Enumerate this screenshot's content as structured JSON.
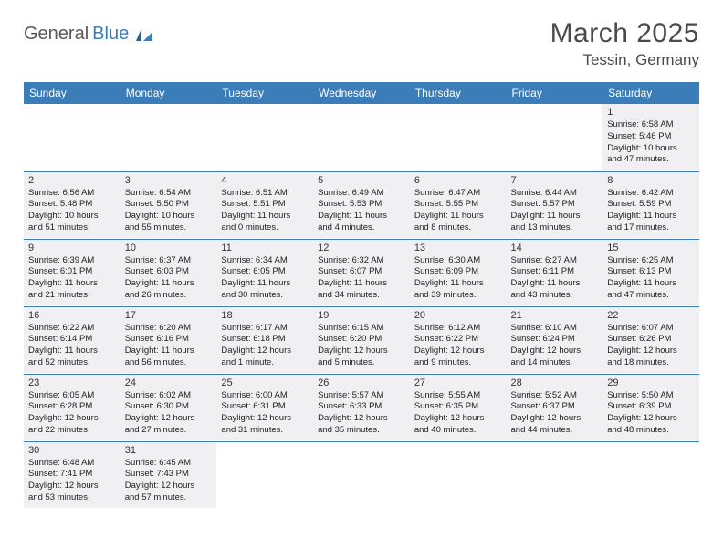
{
  "logo": {
    "text1": "General",
    "text2": "Blue"
  },
  "title": "March 2025",
  "location": "Tessin, Germany",
  "colors": {
    "header_bg": "#3b7db8",
    "header_text": "#ffffff",
    "cell_bg": "#f0f0f2",
    "border": "#3b7db8",
    "text": "#222222"
  },
  "weekdays": [
    "Sunday",
    "Monday",
    "Tuesday",
    "Wednesday",
    "Thursday",
    "Friday",
    "Saturday"
  ],
  "weeks": [
    [
      null,
      null,
      null,
      null,
      null,
      null,
      {
        "day": "1",
        "sunrise": "Sunrise: 6:58 AM",
        "sunset": "Sunset: 5:46 PM",
        "daylight1": "Daylight: 10 hours",
        "daylight2": "and 47 minutes."
      }
    ],
    [
      {
        "day": "2",
        "sunrise": "Sunrise: 6:56 AM",
        "sunset": "Sunset: 5:48 PM",
        "daylight1": "Daylight: 10 hours",
        "daylight2": "and 51 minutes."
      },
      {
        "day": "3",
        "sunrise": "Sunrise: 6:54 AM",
        "sunset": "Sunset: 5:50 PM",
        "daylight1": "Daylight: 10 hours",
        "daylight2": "and 55 minutes."
      },
      {
        "day": "4",
        "sunrise": "Sunrise: 6:51 AM",
        "sunset": "Sunset: 5:51 PM",
        "daylight1": "Daylight: 11 hours",
        "daylight2": "and 0 minutes."
      },
      {
        "day": "5",
        "sunrise": "Sunrise: 6:49 AM",
        "sunset": "Sunset: 5:53 PM",
        "daylight1": "Daylight: 11 hours",
        "daylight2": "and 4 minutes."
      },
      {
        "day": "6",
        "sunrise": "Sunrise: 6:47 AM",
        "sunset": "Sunset: 5:55 PM",
        "daylight1": "Daylight: 11 hours",
        "daylight2": "and 8 minutes."
      },
      {
        "day": "7",
        "sunrise": "Sunrise: 6:44 AM",
        "sunset": "Sunset: 5:57 PM",
        "daylight1": "Daylight: 11 hours",
        "daylight2": "and 13 minutes."
      },
      {
        "day": "8",
        "sunrise": "Sunrise: 6:42 AM",
        "sunset": "Sunset: 5:59 PM",
        "daylight1": "Daylight: 11 hours",
        "daylight2": "and 17 minutes."
      }
    ],
    [
      {
        "day": "9",
        "sunrise": "Sunrise: 6:39 AM",
        "sunset": "Sunset: 6:01 PM",
        "daylight1": "Daylight: 11 hours",
        "daylight2": "and 21 minutes."
      },
      {
        "day": "10",
        "sunrise": "Sunrise: 6:37 AM",
        "sunset": "Sunset: 6:03 PM",
        "daylight1": "Daylight: 11 hours",
        "daylight2": "and 26 minutes."
      },
      {
        "day": "11",
        "sunrise": "Sunrise: 6:34 AM",
        "sunset": "Sunset: 6:05 PM",
        "daylight1": "Daylight: 11 hours",
        "daylight2": "and 30 minutes."
      },
      {
        "day": "12",
        "sunrise": "Sunrise: 6:32 AM",
        "sunset": "Sunset: 6:07 PM",
        "daylight1": "Daylight: 11 hours",
        "daylight2": "and 34 minutes."
      },
      {
        "day": "13",
        "sunrise": "Sunrise: 6:30 AM",
        "sunset": "Sunset: 6:09 PM",
        "daylight1": "Daylight: 11 hours",
        "daylight2": "and 39 minutes."
      },
      {
        "day": "14",
        "sunrise": "Sunrise: 6:27 AM",
        "sunset": "Sunset: 6:11 PM",
        "daylight1": "Daylight: 11 hours",
        "daylight2": "and 43 minutes."
      },
      {
        "day": "15",
        "sunrise": "Sunrise: 6:25 AM",
        "sunset": "Sunset: 6:13 PM",
        "daylight1": "Daylight: 11 hours",
        "daylight2": "and 47 minutes."
      }
    ],
    [
      {
        "day": "16",
        "sunrise": "Sunrise: 6:22 AM",
        "sunset": "Sunset: 6:14 PM",
        "daylight1": "Daylight: 11 hours",
        "daylight2": "and 52 minutes."
      },
      {
        "day": "17",
        "sunrise": "Sunrise: 6:20 AM",
        "sunset": "Sunset: 6:16 PM",
        "daylight1": "Daylight: 11 hours",
        "daylight2": "and 56 minutes."
      },
      {
        "day": "18",
        "sunrise": "Sunrise: 6:17 AM",
        "sunset": "Sunset: 6:18 PM",
        "daylight1": "Daylight: 12 hours",
        "daylight2": "and 1 minute."
      },
      {
        "day": "19",
        "sunrise": "Sunrise: 6:15 AM",
        "sunset": "Sunset: 6:20 PM",
        "daylight1": "Daylight: 12 hours",
        "daylight2": "and 5 minutes."
      },
      {
        "day": "20",
        "sunrise": "Sunrise: 6:12 AM",
        "sunset": "Sunset: 6:22 PM",
        "daylight1": "Daylight: 12 hours",
        "daylight2": "and 9 minutes."
      },
      {
        "day": "21",
        "sunrise": "Sunrise: 6:10 AM",
        "sunset": "Sunset: 6:24 PM",
        "daylight1": "Daylight: 12 hours",
        "daylight2": "and 14 minutes."
      },
      {
        "day": "22",
        "sunrise": "Sunrise: 6:07 AM",
        "sunset": "Sunset: 6:26 PM",
        "daylight1": "Daylight: 12 hours",
        "daylight2": "and 18 minutes."
      }
    ],
    [
      {
        "day": "23",
        "sunrise": "Sunrise: 6:05 AM",
        "sunset": "Sunset: 6:28 PM",
        "daylight1": "Daylight: 12 hours",
        "daylight2": "and 22 minutes."
      },
      {
        "day": "24",
        "sunrise": "Sunrise: 6:02 AM",
        "sunset": "Sunset: 6:30 PM",
        "daylight1": "Daylight: 12 hours",
        "daylight2": "and 27 minutes."
      },
      {
        "day": "25",
        "sunrise": "Sunrise: 6:00 AM",
        "sunset": "Sunset: 6:31 PM",
        "daylight1": "Daylight: 12 hours",
        "daylight2": "and 31 minutes."
      },
      {
        "day": "26",
        "sunrise": "Sunrise: 5:57 AM",
        "sunset": "Sunset: 6:33 PM",
        "daylight1": "Daylight: 12 hours",
        "daylight2": "and 35 minutes."
      },
      {
        "day": "27",
        "sunrise": "Sunrise: 5:55 AM",
        "sunset": "Sunset: 6:35 PM",
        "daylight1": "Daylight: 12 hours",
        "daylight2": "and 40 minutes."
      },
      {
        "day": "28",
        "sunrise": "Sunrise: 5:52 AM",
        "sunset": "Sunset: 6:37 PM",
        "daylight1": "Daylight: 12 hours",
        "daylight2": "and 44 minutes."
      },
      {
        "day": "29",
        "sunrise": "Sunrise: 5:50 AM",
        "sunset": "Sunset: 6:39 PM",
        "daylight1": "Daylight: 12 hours",
        "daylight2": "and 48 minutes."
      }
    ],
    [
      {
        "day": "30",
        "sunrise": "Sunrise: 6:48 AM",
        "sunset": "Sunset: 7:41 PM",
        "daylight1": "Daylight: 12 hours",
        "daylight2": "and 53 minutes."
      },
      {
        "day": "31",
        "sunrise": "Sunrise: 6:45 AM",
        "sunset": "Sunset: 7:43 PM",
        "daylight1": "Daylight: 12 hours",
        "daylight2": "and 57 minutes."
      },
      null,
      null,
      null,
      null,
      null
    ]
  ]
}
